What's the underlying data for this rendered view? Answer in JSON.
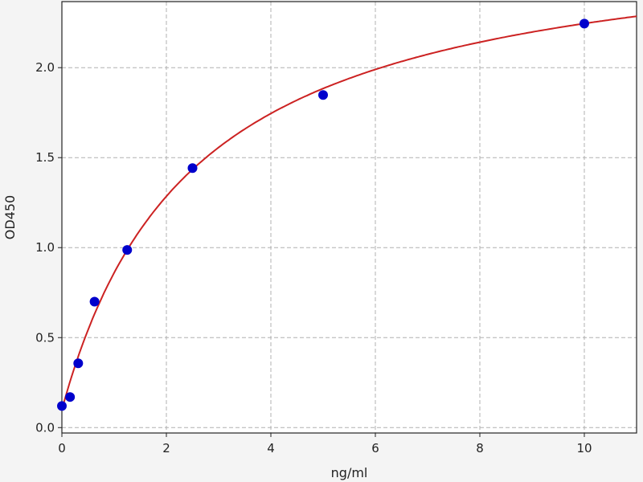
{
  "chart_data": {
    "type": "scatter",
    "title": "",
    "xlabel": "ng/ml",
    "ylabel": "OD450",
    "xlim": [
      0,
      11
    ],
    "ylim": [
      -0.03,
      2.367
    ],
    "xticks": [
      0,
      2,
      4,
      6,
      8,
      10
    ],
    "yticks": [
      0.0,
      0.5,
      1.0,
      1.5,
      2.0
    ],
    "xtick_labels": [
      "0",
      "2",
      "4",
      "6",
      "8",
      "10"
    ],
    "ytick_labels": [
      "0.0",
      "0.5",
      "1.0",
      "1.5",
      "2.0"
    ],
    "grid": true,
    "points": {
      "x": [
        0,
        0.156,
        0.3125,
        0.625,
        1.25,
        2.5,
        5,
        10
      ],
      "y": [
        0.12,
        0.17,
        0.357,
        0.7,
        0.987,
        1.442,
        1.848,
        2.245
      ],
      "color": "#0000cc"
    },
    "fit_curve": {
      "color": "#cc2222",
      "model": "y = a + b*x/(c+x)",
      "params": {
        "a": 0.1,
        "b": 2.69,
        "c": 2.54
      }
    }
  }
}
